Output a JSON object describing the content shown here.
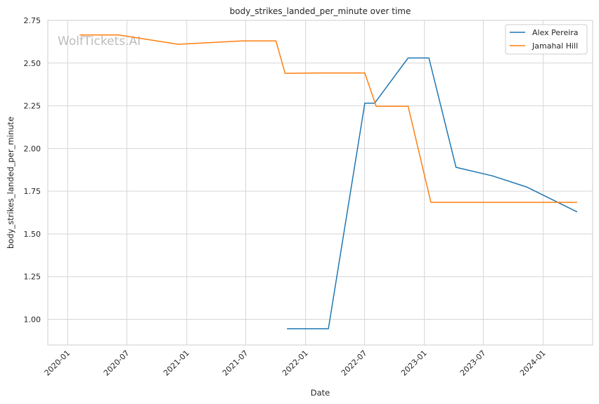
{
  "watermark": "WolfTickets.AI",
  "chart_data": {
    "type": "line",
    "title": "body_strikes_landed_per_minute over time",
    "xlabel": "Date",
    "ylabel": "body_strikes_landed_per_minute",
    "x_type": "date",
    "xlim": [
      "2019-11-01",
      "2024-06-01"
    ],
    "ylim": [
      0.85,
      2.75
    ],
    "x_ticks": [
      "2020-01",
      "2020-07",
      "2021-01",
      "2021-07",
      "2022-01",
      "2022-07",
      "2023-01",
      "2023-07",
      "2024-01"
    ],
    "y_ticks": [
      "1.00",
      "1.25",
      "1.50",
      "1.75",
      "2.00",
      "2.25",
      "2.50",
      "2.75"
    ],
    "grid": true,
    "legend_position": "top-right",
    "series": [
      {
        "name": "Alex Pereira",
        "color": "#1f77b4",
        "points": [
          {
            "x": "2021-11-06",
            "y": 0.945
          },
          {
            "x": "2022-03-12",
            "y": 0.945
          },
          {
            "x": "2022-07-02",
            "y": 2.265
          },
          {
            "x": "2022-08-01",
            "y": 2.265
          },
          {
            "x": "2022-11-12",
            "y": 2.53
          },
          {
            "x": "2023-01-15",
            "y": 2.53
          },
          {
            "x": "2023-04-08",
            "y": 1.89
          },
          {
            "x": "2023-07-29",
            "y": 1.84
          },
          {
            "x": "2023-11-11",
            "y": 1.775
          },
          {
            "x": "2024-04-13",
            "y": 1.63
          }
        ]
      },
      {
        "name": "Jamahal Hill",
        "color": "#ff7f0e",
        "points": [
          {
            "x": "2020-02-08",
            "y": 2.665
          },
          {
            "x": "2020-06-06",
            "y": 2.665
          },
          {
            "x": "2020-12-05",
            "y": 2.61
          },
          {
            "x": "2021-06-19",
            "y": 2.63
          },
          {
            "x": "2021-10-02",
            "y": 2.63
          },
          {
            "x": "2021-10-30",
            "y": 2.44
          },
          {
            "x": "2022-02-12",
            "y": 2.442
          },
          {
            "x": "2022-07-02",
            "y": 2.442
          },
          {
            "x": "2022-08-06",
            "y": 2.247
          },
          {
            "x": "2022-11-12",
            "y": 2.247
          },
          {
            "x": "2023-01-21",
            "y": 1.685
          },
          {
            "x": "2024-04-13",
            "y": 1.685
          }
        ]
      }
    ]
  }
}
